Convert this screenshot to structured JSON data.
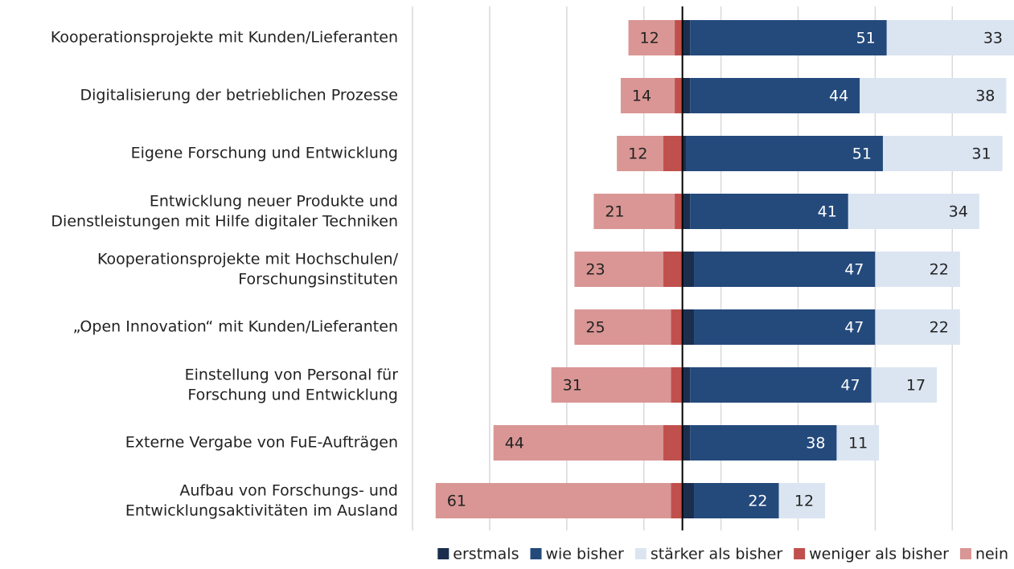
{
  "chart_data": {
    "type": "diverging_bar",
    "categories": [
      "Kooperationsprojekte mit Kunden/Lieferanten",
      "Digitalisierung der betrieblichen Prozesse",
      "Eigene Forschung und Entwicklung",
      "Entwicklung neuer Produkte und\nDienstleistungen mit Hilfe digitaler Techniken",
      "Kooperationsprojekte mit Hochschulen/\nForschungsinstituten",
      "„Open Innovation“ mit Kunden/Lieferanten",
      "Einstellung von Personal für\nForschung und Entwicklung",
      "Externe Vergabe von FuE-Aufträgen",
      "Aufbau von Forschungs- und\nEntwicklungsaktivitäten im Ausland"
    ],
    "series": [
      {
        "name": "erstmals",
        "color": "#1b2e4e",
        "side": "right",
        "show_labels": false,
        "values": [
          2,
          2,
          1,
          2,
          3,
          3,
          2,
          2,
          3
        ]
      },
      {
        "name": "wie bisher",
        "color": "#244a7c",
        "side": "right",
        "show_labels": true,
        "label_color": "#ffffff",
        "values": [
          51,
          44,
          51,
          41,
          47,
          47,
          47,
          38,
          22
        ]
      },
      {
        "name": "stärker als bisher",
        "color": "#dbe5f1",
        "side": "right",
        "show_labels": true,
        "label_color": "#222222",
        "values": [
          33,
          38,
          31,
          34,
          22,
          22,
          17,
          11,
          12
        ]
      },
      {
        "name": "weniger als bisher",
        "color": "#c0504d",
        "side": "left",
        "show_labels": false,
        "values": [
          2,
          2,
          5,
          2,
          5,
          3,
          3,
          5,
          3
        ]
      },
      {
        "name": "nein",
        "color": "#d99694",
        "side": "left",
        "show_labels": true,
        "label_color": "#222222",
        "values": [
          12,
          14,
          12,
          21,
          23,
          25,
          31,
          44,
          61
        ]
      }
    ],
    "xlim": [
      -70,
      86
    ],
    "xticks": [
      -70,
      -50,
      -30,
      -10,
      10,
      30,
      50,
      70
    ],
    "grid": true,
    "legend": "bottom"
  }
}
